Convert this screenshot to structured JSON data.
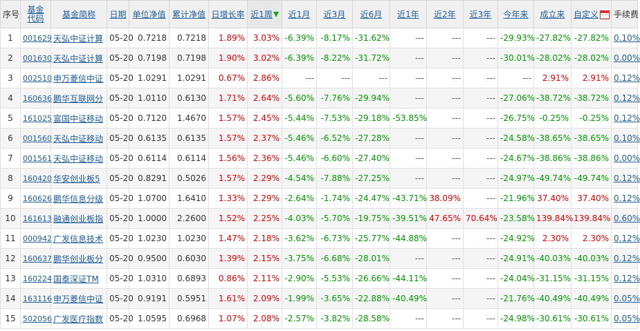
{
  "headers": {
    "seq": "序号",
    "code": "基金代码",
    "name": "基金简称",
    "date": "日期",
    "nav": "单位净值",
    "acc_nav": "累计净值",
    "daily": "日增长率",
    "week1": "近1周",
    "month1": "近1月",
    "month3": "近3月",
    "month6": "近6月",
    "year1": "近1年",
    "year2": "近2年",
    "year3": "近3年",
    "ytd": "今年来",
    "since": "成立来",
    "custom": "自定义",
    "fee": "手续费"
  },
  "rows": [
    {
      "seq": "1",
      "code": "001629",
      "name": "天弘中证计算",
      "date": "05-20",
      "nav": "0.7218",
      "acc_nav": "0.7218",
      "daily": "1.89%",
      "week1": "3.03%",
      "month1": "-6.39%",
      "month3": "-8.17%",
      "month6": "-31.62%",
      "year1": "---",
      "year2": "---",
      "year3": "---",
      "ytd": "-29.93%",
      "since": "-27.82%",
      "custom": "-27.82%",
      "fee": "0.10%"
    },
    {
      "seq": "2",
      "code": "001630",
      "name": "天弘中证计算",
      "date": "05-20",
      "nav": "0.7198",
      "acc_nav": "0.7198",
      "daily": "1.90%",
      "week1": "3.02%",
      "month1": "-6.39%",
      "month3": "-8.22%",
      "month6": "-31.72%",
      "year1": "---",
      "year2": "---",
      "year3": "---",
      "ytd": "-30.01%",
      "since": "-28.02%",
      "custom": "-28.02%",
      "fee": "0.00%"
    },
    {
      "seq": "3",
      "code": "002510",
      "name": "申万菱信中证",
      "date": "05-20",
      "nav": "1.0291",
      "acc_nav": "1.0291",
      "daily": "0.67%",
      "week1": "2.86%",
      "month1": "---",
      "month3": "---",
      "month6": "---",
      "year1": "---",
      "year2": "---",
      "year3": "---",
      "ytd": "---",
      "since": "2.91%",
      "custom": "2.91%",
      "fee": "0.12%"
    },
    {
      "seq": "4",
      "code": "160636",
      "name": "鹏华互联网分",
      "date": "05-20",
      "nav": "1.0110",
      "acc_nav": "0.6130",
      "daily": "1.71%",
      "week1": "2.64%",
      "month1": "-5.60%",
      "month3": "-7.76%",
      "month6": "-29.94%",
      "year1": "---",
      "year2": "---",
      "year3": "---",
      "ytd": "-27.06%",
      "since": "-38.72%",
      "custom": "-38.72%",
      "fee": "0.12%"
    },
    {
      "seq": "5",
      "code": "161025",
      "name": "富国中证移动",
      "date": "05-20",
      "nav": "0.7120",
      "acc_nav": "1.4670",
      "daily": "1.57%",
      "week1": "2.45%",
      "month1": "-5.44%",
      "month3": "-7.53%",
      "month6": "-29.18%",
      "year1": "-53.85%",
      "year2": "---",
      "year3": "---",
      "ytd": "-26.75%",
      "since": "-0.25%",
      "custom": "-0.25%",
      "fee": "0.12%"
    },
    {
      "seq": "6",
      "code": "001560",
      "name": "天弘中证移动",
      "date": "05-20",
      "nav": "0.6135",
      "acc_nav": "0.6135",
      "daily": "1.57%",
      "week1": "2.37%",
      "month1": "-5.46%",
      "month3": "-6.52%",
      "month6": "-27.28%",
      "year1": "---",
      "year2": "---",
      "year3": "---",
      "ytd": "-24.58%",
      "since": "-38.65%",
      "custom": "-38.65%",
      "fee": "0.10%"
    },
    {
      "seq": "7",
      "code": "001561",
      "name": "天弘中证移动",
      "date": "05-20",
      "nav": "0.6114",
      "acc_nav": "0.6114",
      "daily": "1.56%",
      "week1": "2.36%",
      "month1": "-5.46%",
      "month3": "-6.60%",
      "month6": "-27.40%",
      "year1": "---",
      "year2": "---",
      "year3": "---",
      "ytd": "-24.67%",
      "since": "-38.86%",
      "custom": "-38.86%",
      "fee": "0.00%"
    },
    {
      "seq": "8",
      "code": "160420",
      "name": "华安创业板5",
      "date": "05-20",
      "nav": "0.8291",
      "acc_nav": "0.5026",
      "daily": "1.57%",
      "week1": "2.29%",
      "month1": "-4.54%",
      "month3": "-7.88%",
      "month6": "-27.25%",
      "year1": "---",
      "year2": "---",
      "year3": "---",
      "ytd": "-24.97%",
      "since": "-49.74%",
      "custom": "-49.74%",
      "fee": "0.12%"
    },
    {
      "seq": "9",
      "code": "160626",
      "name": "鹏华信息分级",
      "date": "05-20",
      "nav": "1.0700",
      "acc_nav": "1.6410",
      "daily": "1.33%",
      "week1": "2.29%",
      "month1": "-2.64%",
      "month3": "-1.74%",
      "month6": "-24.47%",
      "year1": "-43.71%",
      "year2": "38.09%",
      "year3": "---",
      "ytd": "-21.96%",
      "since": "37.40%",
      "custom": "37.40%",
      "fee": "0.12%"
    },
    {
      "seq": "10",
      "code": "161613",
      "name": "融通创业板指",
      "date": "05-20",
      "nav": "1.0000",
      "acc_nav": "2.2600",
      "daily": "1.52%",
      "week1": "2.25%",
      "month1": "-4.03%",
      "month3": "-5.70%",
      "month6": "-19.75%",
      "year1": "-39.51%",
      "year2": "47.65%",
      "year3": "70.64%",
      "ytd": "-23.58%",
      "since": "139.84%",
      "custom": "139.84%",
      "fee": "0.60%"
    },
    {
      "seq": "11",
      "code": "000942",
      "name": "广发信息技术",
      "date": "05-20",
      "nav": "1.0230",
      "acc_nav": "1.0230",
      "daily": "1.47%",
      "week1": "2.18%",
      "month1": "-3.62%",
      "month3": "-6.73%",
      "month6": "-25.77%",
      "year1": "-44.88%",
      "year2": "---",
      "year3": "---",
      "ytd": "-24.92%",
      "since": "2.30%",
      "custom": "2.30%",
      "fee": "0.12%"
    },
    {
      "seq": "12",
      "code": "160637",
      "name": "鹏华创业板分",
      "date": "05-20",
      "nav": "0.9500",
      "acc_nav": "0.6030",
      "daily": "1.39%",
      "week1": "2.15%",
      "month1": "-3.75%",
      "month3": "-6.68%",
      "month6": "-28.01%",
      "year1": "---",
      "year2": "---",
      "year3": "---",
      "ytd": "-24.91%",
      "since": "-40.03%",
      "custom": "-40.03%",
      "fee": "0.12%"
    },
    {
      "seq": "13",
      "code": "160224",
      "name": "国泰深证TM",
      "date": "05-20",
      "nav": "1.0310",
      "acc_nav": "0.6893",
      "daily": "0.86%",
      "week1": "2.11%",
      "month1": "-2.90%",
      "month3": "-5.53%",
      "month6": "-26.66%",
      "year1": "-44.11%",
      "year2": "---",
      "year3": "---",
      "ytd": "-24.04%",
      "since": "-31.15%",
      "custom": "-31.15%",
      "fee": "0.12%"
    },
    {
      "seq": "14",
      "code": "163116",
      "name": "申万菱信中证",
      "date": "05-20",
      "nav": "0.9191",
      "acc_nav": "0.5951",
      "daily": "1.61%",
      "week1": "2.09%",
      "month1": "-1.99%",
      "month3": "-3.65%",
      "month6": "-22.88%",
      "year1": "-40.49%",
      "year2": "---",
      "year3": "---",
      "ytd": "-21.76%",
      "since": "-40.49%",
      "custom": "-40.49%",
      "fee": "0.05%"
    },
    {
      "seq": "15",
      "code": "502056",
      "name": "广发医疗指数",
      "date": "05-20",
      "nav": "1.0595",
      "acc_nav": "0.6968",
      "daily": "1.07%",
      "week1": "2.08%",
      "month1": "-2.57%",
      "month3": "-3.82%",
      "month6": "-28.58%",
      "year1": "---",
      "year2": "---",
      "year3": "---",
      "ytd": "-24.98%",
      "since": "-30.61%",
      "custom": "-30.61%",
      "fee": "0.05%"
    }
  ],
  "colors": {
    "up": "#e60000",
    "down": "#009900",
    "link": "#1f5d9a"
  },
  "icons": {
    "sort_down": "green-down-arrow-icon",
    "calendar": "calendar-icon"
  }
}
